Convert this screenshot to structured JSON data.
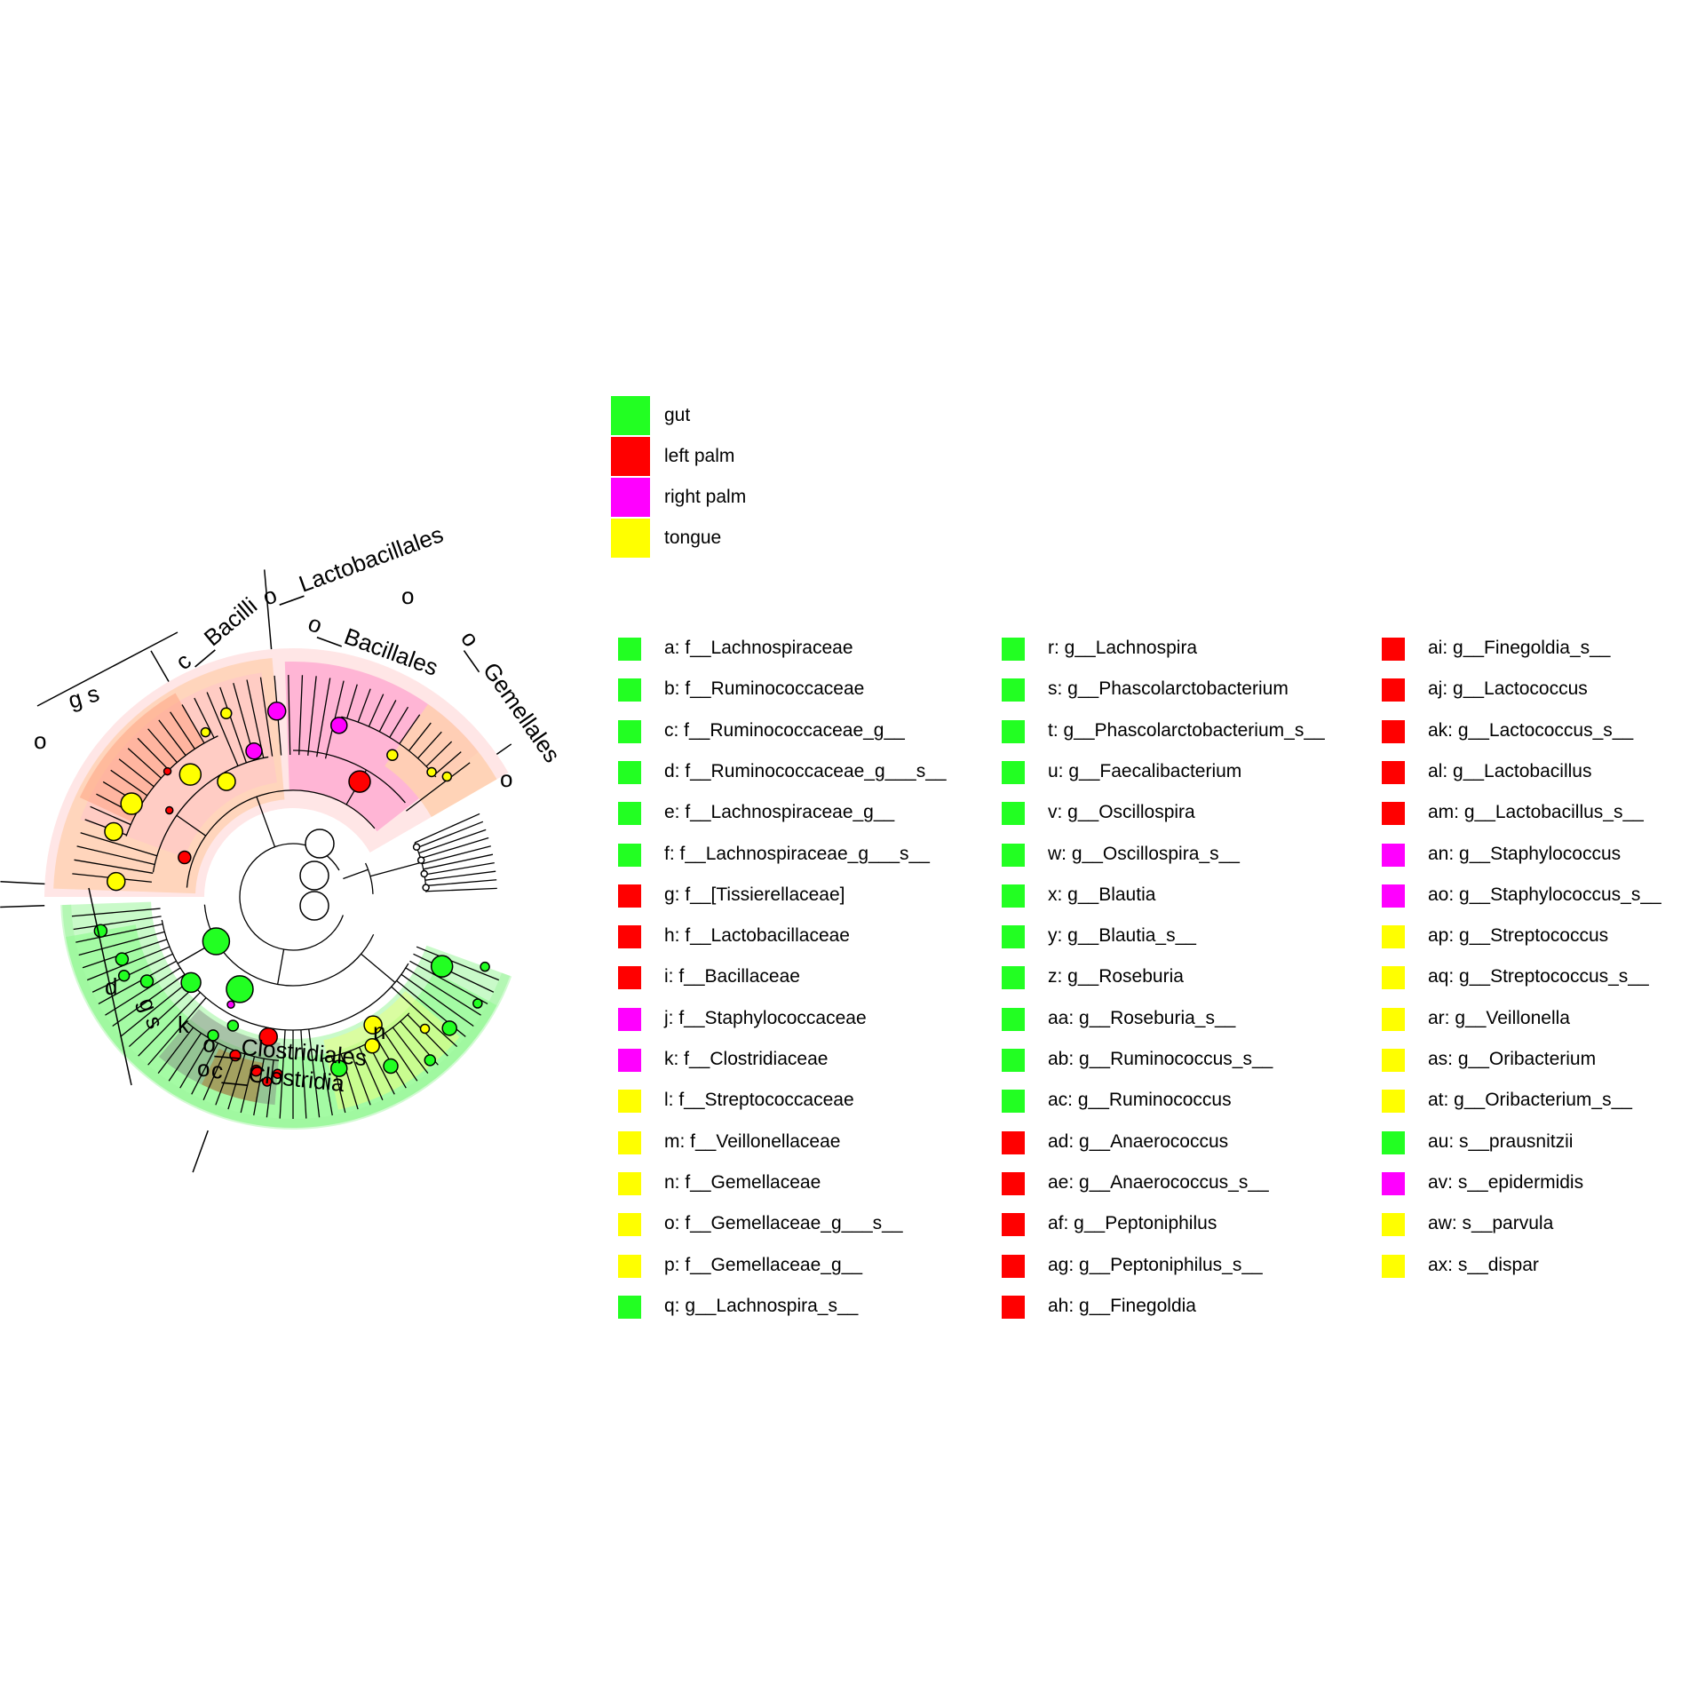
{
  "class_legend": [
    {
      "label": "gut",
      "color": "#22ff22"
    },
    {
      "label": "left palm",
      "color": "#ff0000"
    },
    {
      "label": "right palm",
      "color": "#ff00ff"
    },
    {
      "label": "tongue",
      "color": "#ffff00"
    }
  ],
  "colors": {
    "gut": "#22ff22",
    "left_palm": "#ff0000",
    "right_palm": "#ff00ff",
    "tongue": "#ffff00",
    "gut_shade": "#9cf59c",
    "left_palm_shade": "#ffc8c8",
    "right_palm_shade": "#ff90d8",
    "tongue_shade": "#ffd8a0"
  },
  "abbreviation_legend": [
    {
      "label": "a: f__Lachnospiraceae",
      "group": "gut"
    },
    {
      "label": "b: f__Ruminococcaceae",
      "group": "gut"
    },
    {
      "label": "c: f__Ruminococcaceae_g__",
      "group": "gut"
    },
    {
      "label": "d: f__Ruminococcaceae_g___s__",
      "group": "gut"
    },
    {
      "label": "e: f__Lachnospiraceae_g__",
      "group": "gut"
    },
    {
      "label": "f: f__Lachnospiraceae_g___s__",
      "group": "gut"
    },
    {
      "label": "g: f__[Tissierellaceae]",
      "group": "left_palm"
    },
    {
      "label": "h: f__Lactobacillaceae",
      "group": "left_palm"
    },
    {
      "label": "i: f__Bacillaceae",
      "group": "left_palm"
    },
    {
      "label": "j: f__Staphylococcaceae",
      "group": "right_palm"
    },
    {
      "label": "k: f__Clostridiaceae",
      "group": "right_palm"
    },
    {
      "label": "l: f__Streptococcaceae",
      "group": "tongue"
    },
    {
      "label": "m: f__Veillonellaceae",
      "group": "tongue"
    },
    {
      "label": "n: f__Gemellaceae",
      "group": "tongue"
    },
    {
      "label": "o: f__Gemellaceae_g___s__",
      "group": "tongue"
    },
    {
      "label": "p: f__Gemellaceae_g__",
      "group": "tongue"
    },
    {
      "label": "q: g__Lachnospira_s__",
      "group": "gut"
    },
    {
      "label": "r: g__Lachnospira",
      "group": "gut"
    },
    {
      "label": "s: g__Phascolarctobacterium",
      "group": "gut"
    },
    {
      "label": "t: g__Phascolarctobacterium_s__",
      "group": "gut"
    },
    {
      "label": "u: g__Faecalibacterium",
      "group": "gut"
    },
    {
      "label": "v: g__Oscillospira",
      "group": "gut"
    },
    {
      "label": "w: g__Oscillospira_s__",
      "group": "gut"
    },
    {
      "label": "x: g__Blautia",
      "group": "gut"
    },
    {
      "label": "y: g__Blautia_s__",
      "group": "gut"
    },
    {
      "label": "z: g__Roseburia",
      "group": "gut"
    },
    {
      "label": "aa: g__Roseburia_s__",
      "group": "gut"
    },
    {
      "label": "ab: g__Ruminococcus_s__",
      "group": "gut"
    },
    {
      "label": "ac: g__Ruminococcus",
      "group": "gut"
    },
    {
      "label": "ad: g__Anaerococcus",
      "group": "left_palm"
    },
    {
      "label": "ae: g__Anaerococcus_s__",
      "group": "left_palm"
    },
    {
      "label": "af: g__Peptoniphilus",
      "group": "left_palm"
    },
    {
      "label": "ag: g__Peptoniphilus_s__",
      "group": "left_palm"
    },
    {
      "label": "ah: g__Finegoldia",
      "group": "left_palm"
    },
    {
      "label": "ai: g__Finegoldia_s__",
      "group": "left_palm"
    },
    {
      "label": "aj: g__Lactococcus",
      "group": "left_palm"
    },
    {
      "label": "ak: g__Lactococcus_s__",
      "group": "left_palm"
    },
    {
      "label": "al: g__Lactobacillus",
      "group": "left_palm"
    },
    {
      "label": "am: g__Lactobacillus_s__",
      "group": "left_palm"
    },
    {
      "label": "an: g__Staphylococcus",
      "group": "right_palm"
    },
    {
      "label": "ao: g__Staphylococcus_s__",
      "group": "right_palm"
    },
    {
      "label": "ap: g__Streptococcus",
      "group": "tongue"
    },
    {
      "label": "aq: g__Streptococcus_s__",
      "group": "tongue"
    },
    {
      "label": "ar: g__Veillonella",
      "group": "tongue"
    },
    {
      "label": "as: g__Oribacterium",
      "group": "tongue"
    },
    {
      "label": "at: g__Oribacterium_s__",
      "group": "tongue"
    },
    {
      "label": "au: s__prausnitzii",
      "group": "gut"
    },
    {
      "label": "av: s__epidermidis",
      "group": "right_palm"
    },
    {
      "label": "aw: s__parvula",
      "group": "tongue"
    },
    {
      "label": "ax: s__dispar",
      "group": "tongue"
    }
  ],
  "tree_labels": {
    "clostridia": "c__Clostridia",
    "clostridiales": "o__Clostridiales",
    "bacilli": "c__Bacilli",
    "lactobacillales": "o__Lactobacillales",
    "bacillales": "o__Bacillales",
    "gemellales": "o__Gemellales",
    "k": "k",
    "n": "n",
    "o_top": "o",
    "o_left": "o",
    "o_right": "o",
    "o_bottom": "o",
    "g_s_top": "g s",
    "g_s_bottom": "g s",
    "d_bottom": "d"
  }
}
